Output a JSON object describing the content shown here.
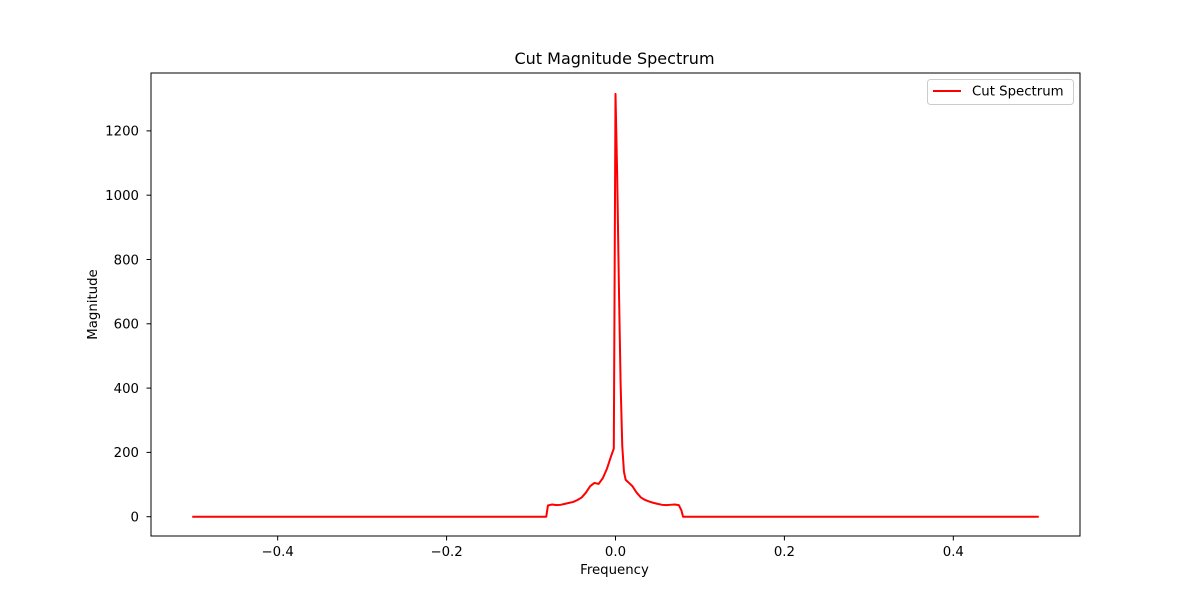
{
  "chart_data": {
    "type": "line",
    "title": "Cut Magnitude Spectrum",
    "xlabel": "Frequency",
    "ylabel": "Magnitude",
    "xlim": [
      -0.55,
      0.55
    ],
    "ylim": [
      -60,
      1380
    ],
    "xticks": [
      -0.4,
      -0.2,
      0.0,
      0.2,
      0.4
    ],
    "xtick_labels": [
      "−0.4",
      "−0.2",
      "0.0",
      "0.2",
      "0.4"
    ],
    "yticks": [
      0,
      200,
      400,
      600,
      800,
      1000,
      1200
    ],
    "ytick_labels": [
      "0",
      "200",
      "400",
      "600",
      "800",
      "1000",
      "1200"
    ],
    "grid": false,
    "legend_position": "top-right",
    "series": [
      {
        "name": "Cut Spectrum",
        "color": "#ff0000",
        "x": [
          -0.5,
          -0.082,
          -0.08,
          -0.075,
          -0.07,
          -0.065,
          -0.06,
          -0.055,
          -0.05,
          -0.045,
          -0.04,
          -0.035,
          -0.03,
          -0.025,
          -0.02,
          -0.015,
          -0.01,
          -0.005,
          -0.002,
          0.0,
          0.002,
          0.004,
          0.006,
          0.008,
          0.01,
          0.012,
          0.014,
          0.016,
          0.02,
          0.025,
          0.03,
          0.035,
          0.04,
          0.045,
          0.05,
          0.055,
          0.06,
          0.065,
          0.07,
          0.075,
          0.078,
          0.08,
          0.5
        ],
        "y": [
          0,
          0,
          35,
          38,
          36,
          37,
          40,
          43,
          46,
          52,
          60,
          75,
          95,
          105,
          102,
          120,
          150,
          190,
          212,
          1315,
          1060,
          720,
          420,
          220,
          140,
          115,
          110,
          105,
          95,
          75,
          60,
          52,
          47,
          43,
          40,
          37,
          36,
          37,
          38,
          36,
          20,
          0,
          0
        ]
      }
    ]
  }
}
